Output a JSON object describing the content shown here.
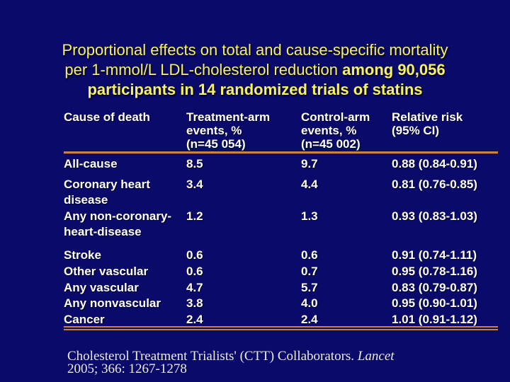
{
  "slide": {
    "colors": {
      "background": "#0a0a6b",
      "title": "#f7f163",
      "rule": "#c8843c",
      "text": "#ffffff",
      "citation": "#eceae2"
    },
    "title": {
      "line1": "Proportional effects on total and cause-specific mortality",
      "line2_regular": "per 1-mmol/L LDL-cholesterol reduction ",
      "line2_bold": "among 90,056",
      "line3": "participants in 14 randomized trials of statins"
    },
    "table": {
      "headers": [
        "Cause of death",
        "Treatment-arm\nevents, %\n(n=45 054)",
        "Control-arm\nevents, %\n(n=45 002)",
        "Relative risk\n(95% CI)"
      ],
      "rows": [
        {
          "cause": "All-cause",
          "treatment": "8.5",
          "control": "9.7",
          "relative_risk": "0.88 (0.84-0.91)"
        },
        {
          "cause": "Coronary heart\ndisease",
          "treatment": "3.4",
          "control": "4.4",
          "relative_risk": "0.81 (0.76-0.85)"
        },
        {
          "cause": "Any non-coronary-\nheart-disease",
          "treatment": "1.2",
          "control": "1.3",
          "relative_risk": "0.93 (0.83-1.03)"
        },
        {
          "cause": "Stroke",
          "treatment": "0.6",
          "control": "0.6",
          "relative_risk": "0.91 (0.74-1.11)"
        },
        {
          "cause": "Other vascular",
          "treatment": "0.6",
          "control": "0.7",
          "relative_risk": "0.95 (0.78-1.16)"
        },
        {
          "cause": "Any vascular",
          "treatment": "4.7",
          "control": "5.7",
          "relative_risk": "0.83 (0.79-0.87)"
        },
        {
          "cause": "Any nonvascular",
          "treatment": "3.8",
          "control": "4.0",
          "relative_risk": "0.95 (0.90-1.01)"
        },
        {
          "cause": "Cancer",
          "treatment": "2.4",
          "control": "2.4",
          "relative_risk": "1.01 (0.91-1.12)"
        }
      ]
    },
    "citation": {
      "authors": "Cholesterol Treatment Trialists' (CTT) Collaborators. ",
      "journal": "Lancet",
      "reference": "2005; 366: 1267-1278"
    }
  }
}
